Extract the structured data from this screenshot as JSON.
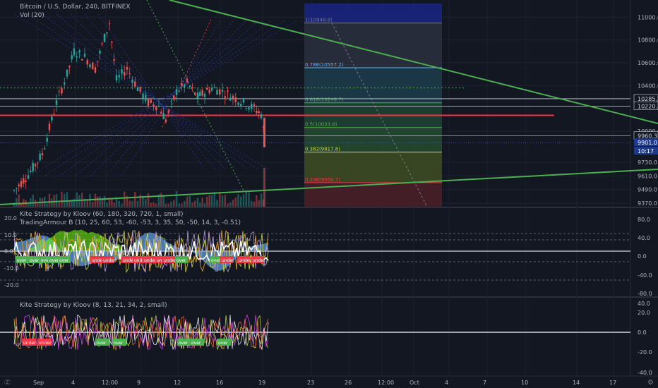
{
  "header": {
    "symbol_line": "Bitcoin / U.S. Dollar, 240, BITFINEX",
    "volume_label": "Vol (20)"
  },
  "pane2": {
    "line1": "Kite Strategy by Kloov (60, 180, 320, 720, 1, small)",
    "line2": "TradingArmour B (10, 25, 60, 53, -60, -53, 3, 35, 50, -50, 14, 3, -0.51)"
  },
  "pane3": {
    "line1": "Kite Strategy by Kloov (8, 13, 21, 34, 2, small)"
  },
  "price_axis": [
    "11000.0",
    "10800.0",
    "10600.0",
    "10400.0",
    "10285.5",
    "10220.3",
    "10000.0",
    "9960.3",
    "9901.0",
    "10:17",
    "9730.0",
    "9610.0",
    "9490.0",
    "9370.0"
  ],
  "pane2_axis_left": [
    "20.0",
    "10.0",
    "0.0",
    "-10.0",
    "-20.0"
  ],
  "pane2_axis_right": [
    "80.0",
    "40.0",
    "0.0",
    "-40.0",
    "-80.0"
  ],
  "pane3_axis": [
    "40.0",
    "20.0",
    "0.0",
    "-20.0",
    "-40.0"
  ],
  "time_axis": [
    "Sep",
    "4",
    "12:00",
    "9",
    "12",
    "16",
    "19",
    "23",
    "26",
    "12:00",
    "Oct",
    "4",
    "7",
    "10",
    "14",
    "17"
  ],
  "fib_levels": [
    {
      "label": "1(10948.8)",
      "price": 10948.8,
      "color": "#787b86"
    },
    {
      "label": "0.786(10557.2)",
      "price": 10557.2,
      "color": "#64b5f6"
    },
    {
      "label": "0.618(10249.7)",
      "price": 10249.7,
      "color": "#4caf50"
    },
    {
      "label": "0.5(10033.8)",
      "price": 10033.8,
      "color": "#4caf50"
    },
    {
      "label": "0.382(9817.8)",
      "price": 9817.8,
      "color": "#cddc39"
    },
    {
      "label": "0.236(9550.7)",
      "price": 9550.7,
      "color": "#f23645"
    }
  ],
  "pane2_badges": [
    "over",
    "over",
    "over",
    "over",
    "over",
    "under",
    "under",
    "under",
    "under",
    "under",
    "under",
    "under",
    "over",
    "over",
    "under",
    "under",
    "under"
  ],
  "pane3_badges": [
    "under",
    "under",
    "over",
    "over",
    "over",
    "over",
    "over"
  ],
  "colors": {
    "background": "#131722",
    "up": "#26a69a",
    "down": "#ef5350",
    "trend": "#4caf50",
    "resistance": "#f23645",
    "badge_over": "#4caf50",
    "badge_under": "#f23645"
  },
  "chart_data": {
    "type": "candlestick",
    "title": "Bitcoin / U.S. Dollar, 240, BITFINEX",
    "ylim": [
      9340,
      11150
    ],
    "price_levels": {
      "last": 9901.0,
      "marker": 9960.3,
      "level_a": 10285.5,
      "level_b": 10220.3
    }
  }
}
